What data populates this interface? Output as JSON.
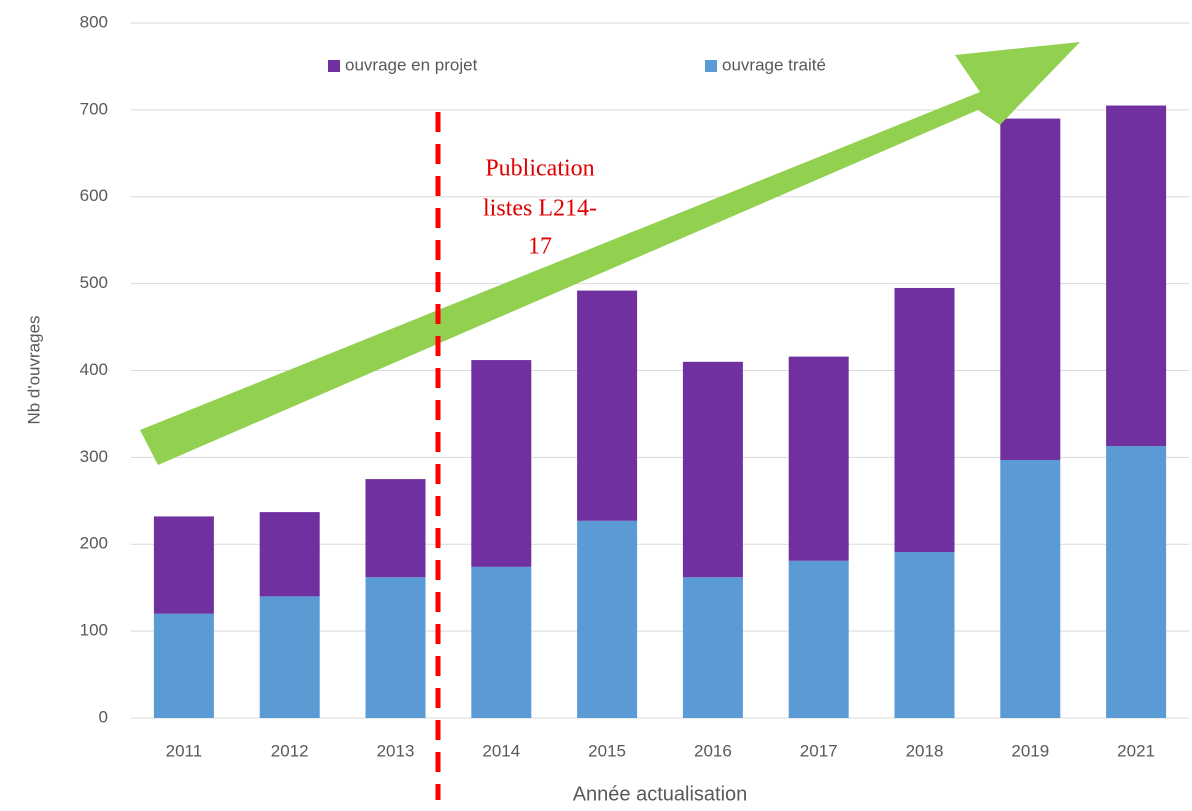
{
  "chart_data": {
    "type": "bar",
    "stacked": true,
    "categories": [
      "2011",
      "2012",
      "2013",
      "2014",
      "2015",
      "2016",
      "2017",
      "2018",
      "2019",
      "2021"
    ],
    "series": [
      {
        "name": "ouvrage traité",
        "color": "#5b9bd5",
        "values": [
          120,
          140,
          162,
          174,
          227,
          162,
          181,
          191,
          297,
          313
        ]
      },
      {
        "name": "ouvrage en projet",
        "color": "#7030a0",
        "values": [
          112,
          97,
          113,
          238,
          265,
          248,
          235,
          304,
          393,
          392
        ]
      }
    ],
    "ylim": [
      0,
      800
    ],
    "yticks": [
      0,
      100,
      200,
      300,
      400,
      500,
      600,
      700,
      800
    ],
    "grid": true,
    "y_label": "Nb d'ouvrages",
    "x_label": "Année actualisation",
    "annotations": [
      "Publication",
      "listes L214-",
      "17"
    ]
  }
}
